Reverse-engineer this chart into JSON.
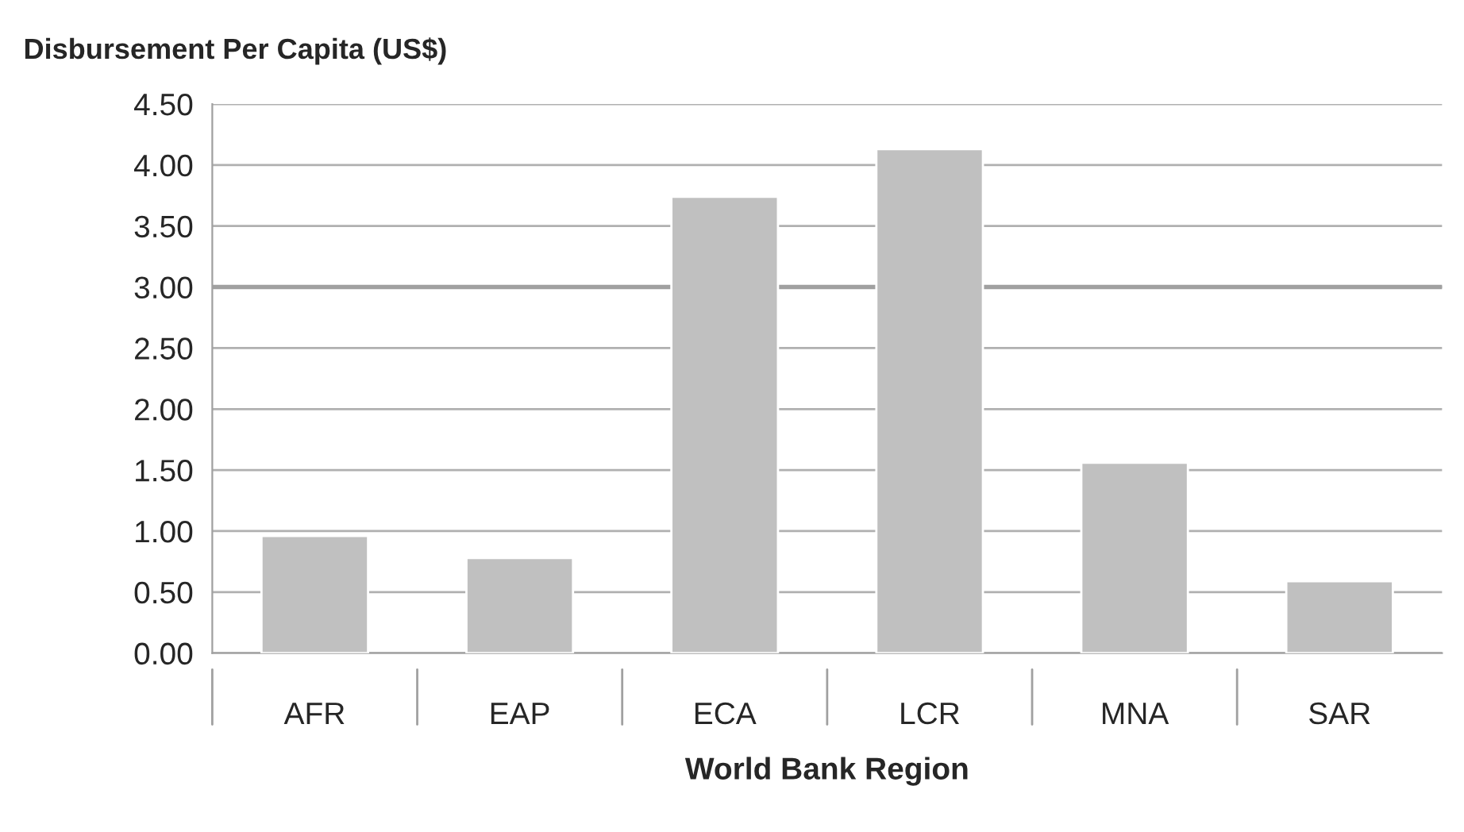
{
  "chart_data": {
    "type": "bar",
    "title": "Disbursement Per Capita (US$)",
    "xlabel": "World Bank Region",
    "categories": [
      "AFR",
      "EAP",
      "ECA",
      "LCR",
      "MNA",
      "SAR"
    ],
    "values": [
      0.96,
      0.78,
      3.74,
      4.13,
      1.56,
      0.59
    ],
    "color": "#c0c0c0",
    "ylim": [
      0,
      4.5
    ],
    "yticks": [
      {
        "value": 0,
        "label": "0.00"
      },
      {
        "value": 0.5,
        "label": "0.50"
      },
      {
        "value": 1,
        "label": "1.00"
      },
      {
        "value": 1.5,
        "label": "1.50"
      },
      {
        "value": 2,
        "label": "2.00"
      },
      {
        "value": 2.5,
        "label": "2.50"
      },
      {
        "value": 3,
        "label": "3.00"
      },
      {
        "value": 3.5,
        "label": "3.50"
      },
      {
        "value": 4,
        "label": "4.00"
      },
      {
        "value": 4.5,
        "label": "4.50"
      }
    ],
    "ref_lines": [
      {
        "axis": "y",
        "value": 3,
        "color": "#a0a0a0"
      }
    ],
    "grid": "y"
  }
}
